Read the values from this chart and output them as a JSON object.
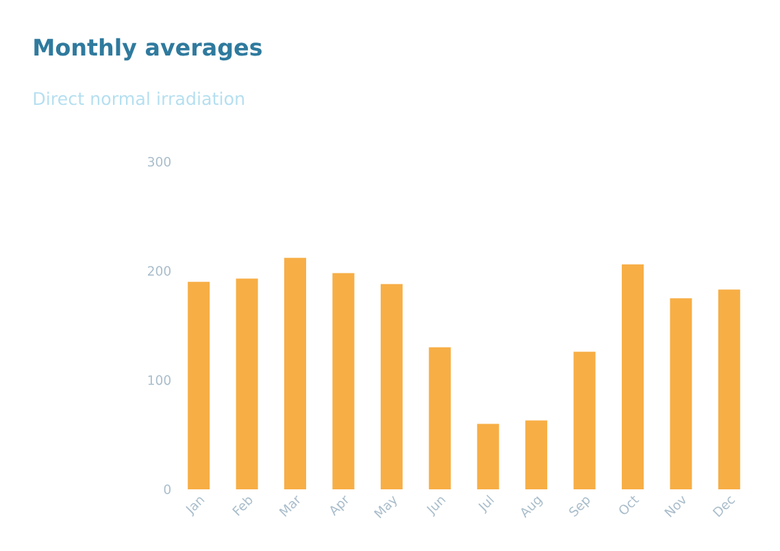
{
  "chart_data": {
    "type": "bar",
    "title": "Monthly averages",
    "subtitle": "Direct normal irradiation",
    "categories": [
      "Jan",
      "Feb",
      "Mar",
      "Apr",
      "May",
      "Jun",
      "Jul",
      "Aug",
      "Sep",
      "Oct",
      "Nov",
      "Dec"
    ],
    "values": [
      190,
      193,
      212,
      198,
      188,
      130,
      60,
      63,
      126,
      206,
      175,
      183
    ],
    "color": "#f7ae45",
    "ylim": [
      0,
      300
    ],
    "yticks": [
      0,
      100,
      200,
      300
    ],
    "grid": false
  }
}
